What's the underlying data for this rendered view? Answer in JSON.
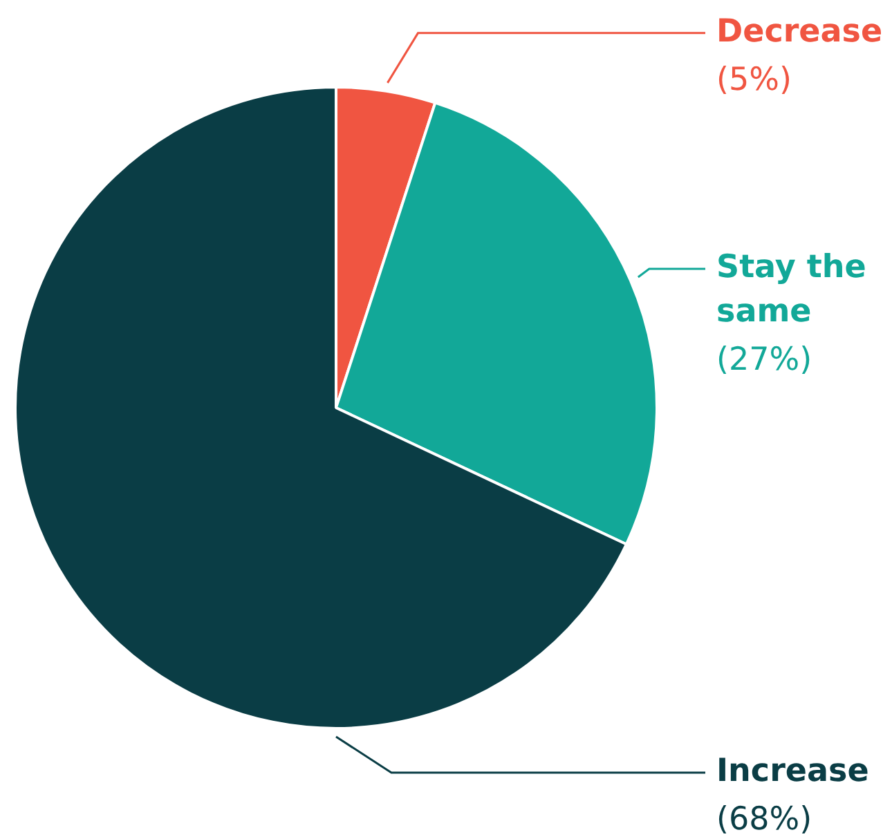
{
  "chart_data": {
    "type": "pie",
    "categories": [
      "Decrease",
      "Stay the same",
      "Increase"
    ],
    "values": [
      5,
      27,
      68
    ],
    "colors": [
      "#f05541",
      "#12a898",
      "#0a3d45"
    ],
    "value_labels": [
      "(5%)",
      "(27%)",
      "(68%)"
    ]
  }
}
